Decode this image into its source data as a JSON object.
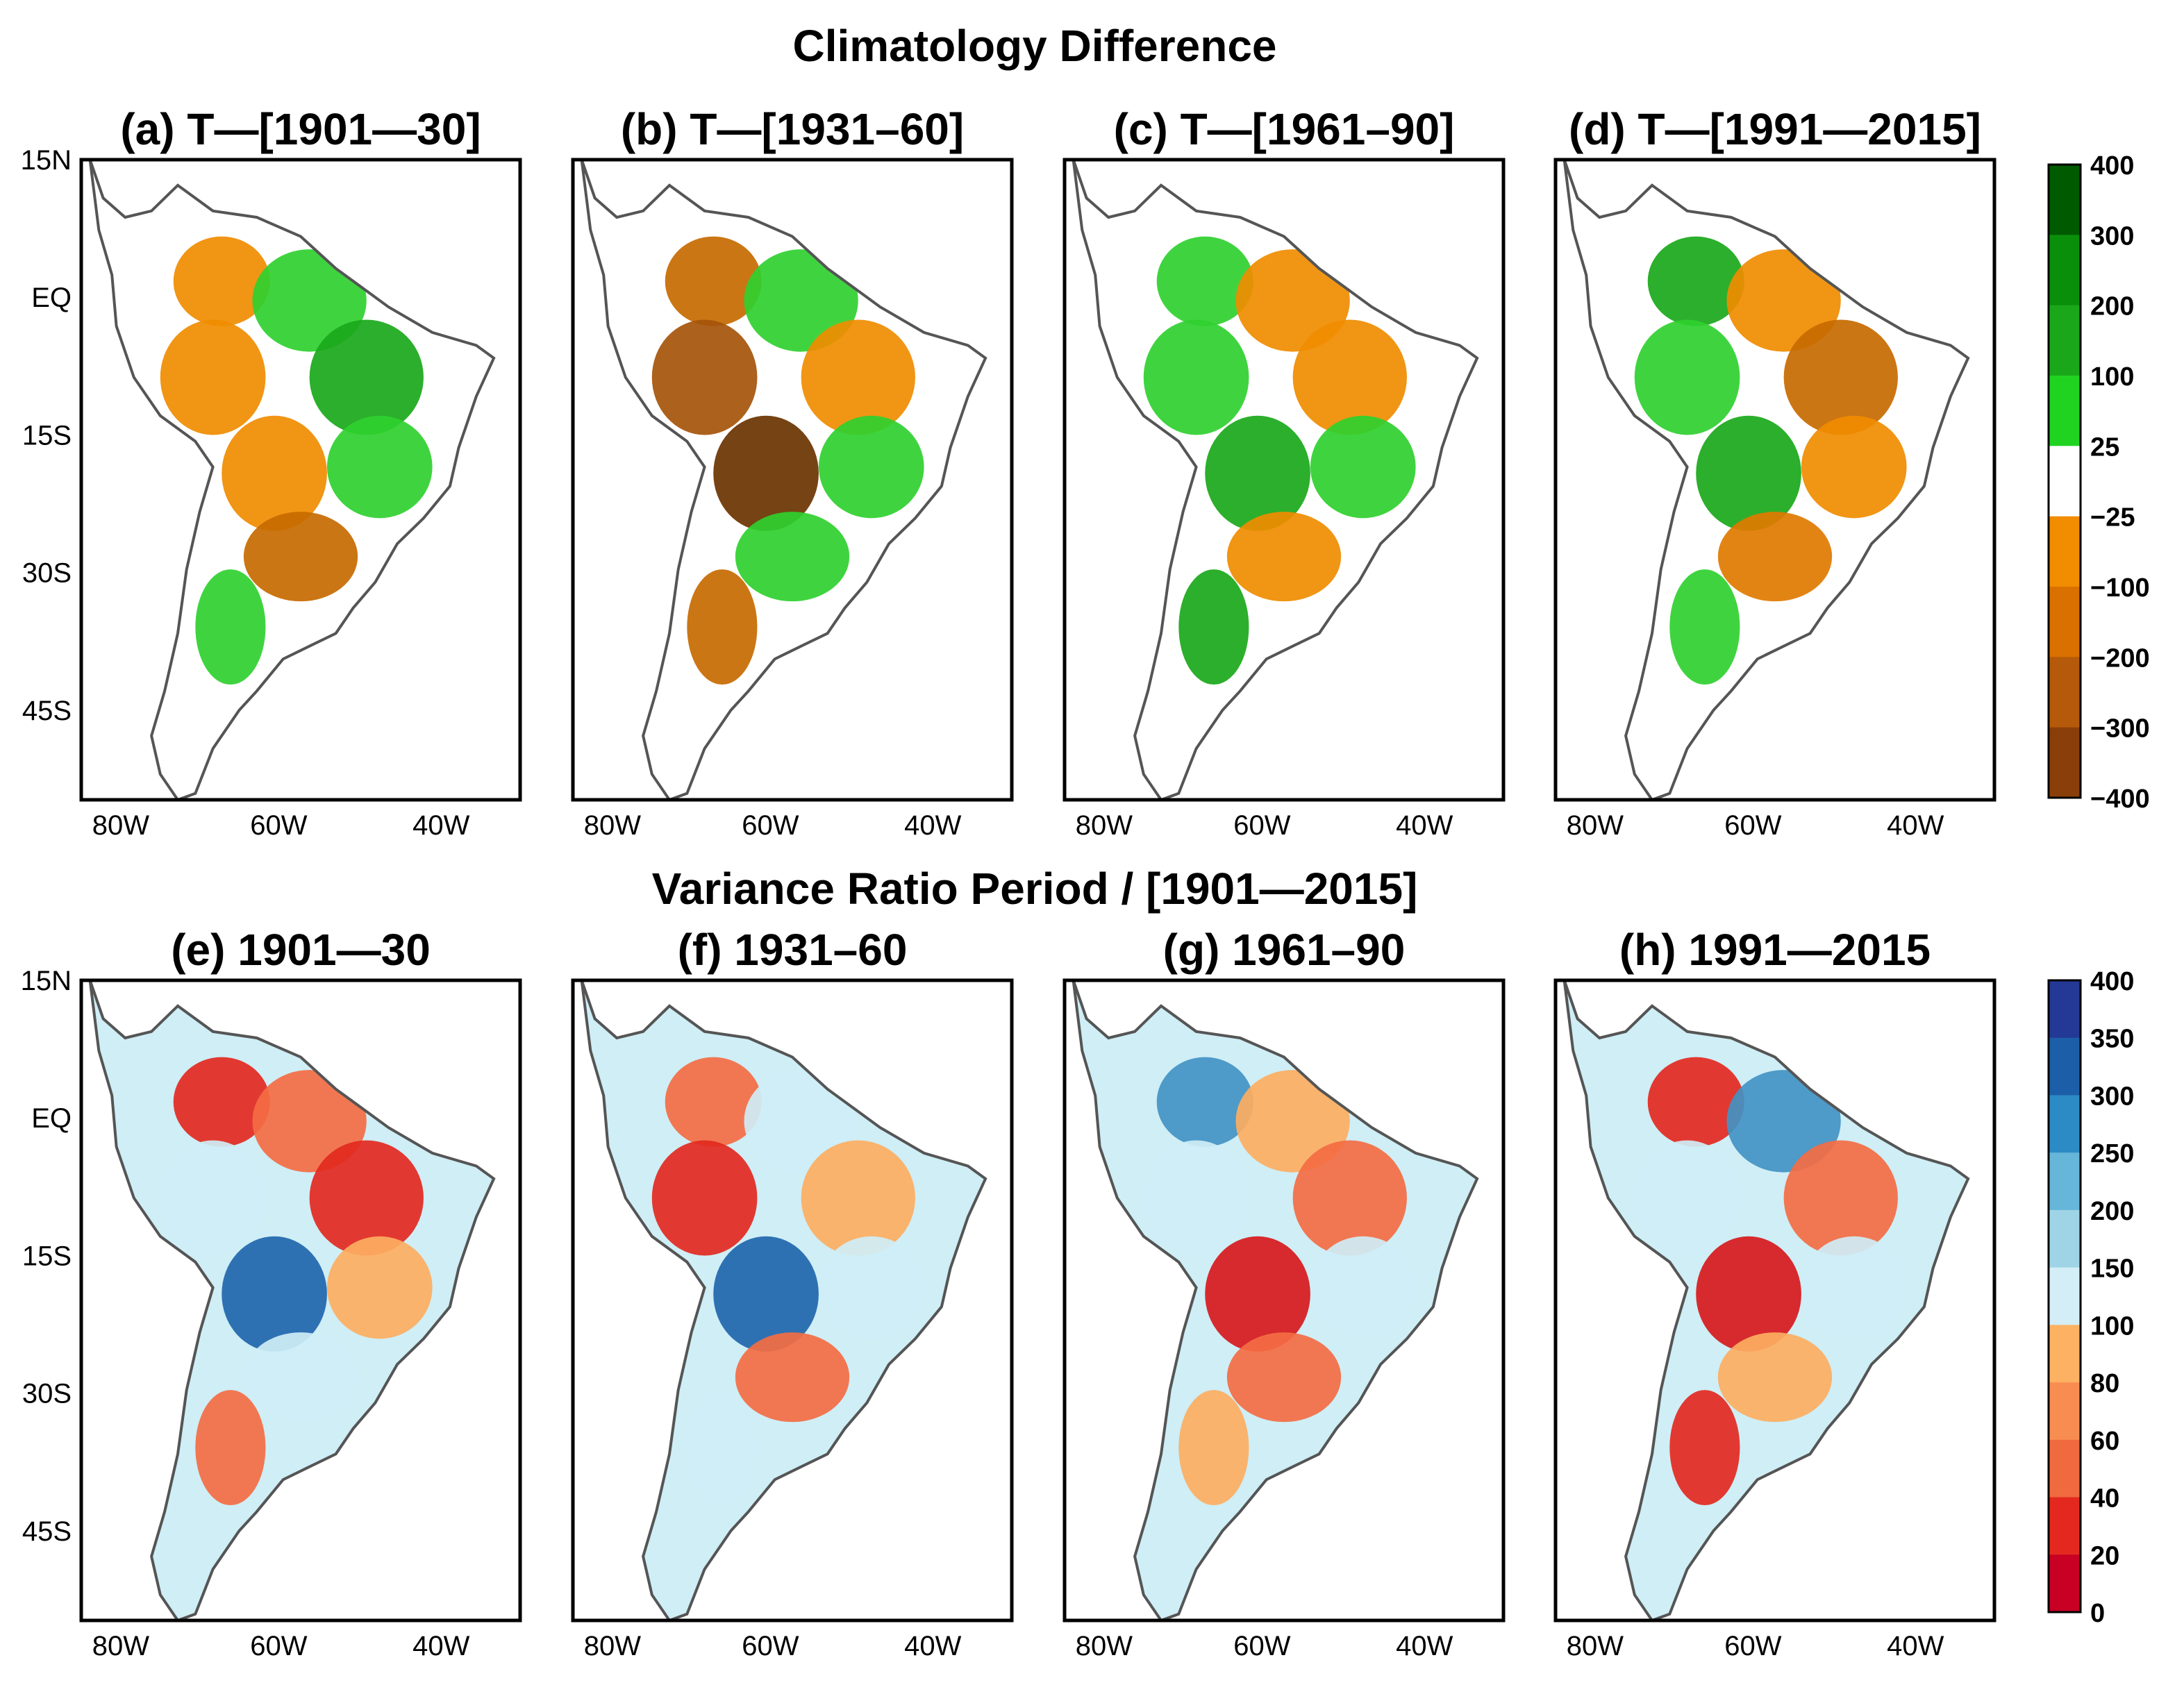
{
  "figure": {
    "top_section_title": "Climatology Difference",
    "bottom_section_title": "Variance Ratio Period / [1901—2015]"
  },
  "panels_top": [
    {
      "title": "(a) T—[1901—30]",
      "shading": [
        "#f08c00",
        "#2fd02f",
        "#f08c00",
        "#1aa81a",
        "#f08c00",
        "#2fd02f",
        "#c76a00",
        "#2fd02f"
      ]
    },
    {
      "title": "(b) T—[1931–60]",
      "shading": [
        "#c76a00",
        "#2fd02f",
        "#a5540a",
        "#f08c00",
        "#6a3300",
        "#2fd02f",
        "#2fd02f",
        "#c76a00"
      ]
    },
    {
      "title": "(c) T—[1961–90]",
      "shading": [
        "#2fd02f",
        "#f08c00",
        "#2fd02f",
        "#f08c00",
        "#1aa81a",
        "#2fd02f",
        "#f08c00",
        "#1aa81a"
      ]
    },
    {
      "title": "(d) T—[1991—2015]",
      "shading": [
        "#1aa81a",
        "#f08c00",
        "#2fd02f",
        "#c76a00",
        "#1aa81a",
        "#f08c00",
        "#e07a00",
        "#2fd02f"
      ]
    }
  ],
  "panels_bottom": [
    {
      "title": "(e) 1901—30",
      "shading": [
        "#e3291f",
        "#f46d43",
        "#cfeef6",
        "#e3291f",
        "#2166ac",
        "#fdae61",
        "#cfeef6",
        "#f46d43"
      ]
    },
    {
      "title": "(f) 1931–60",
      "shading": [
        "#f46d43",
        "#cfeef6",
        "#e3291f",
        "#fdae61",
        "#2166ac",
        "#cfeef6",
        "#f46d43",
        "#cfeef6"
      ]
    },
    {
      "title": "(g) 1961–90",
      "shading": [
        "#4393c3",
        "#fdae61",
        "#cfeef6",
        "#f46d43",
        "#d7191c",
        "#cfeef6",
        "#f46d43",
        "#fdae61"
      ]
    },
    {
      "title": "(h) 1991—2015",
      "shading": [
        "#e3291f",
        "#4393c3",
        "#cfeef6",
        "#f46d43",
        "#d7191c",
        "#cfeef6",
        "#fdae61",
        "#e3291f"
      ]
    }
  ],
  "axes": {
    "lat_ticks": [
      "15N",
      "EQ",
      "15S",
      "30S",
      "45S"
    ],
    "lon_ticks": [
      "80W",
      "60W",
      "40W"
    ]
  },
  "colorbar_top": {
    "labels": [
      "400",
      "300",
      "200",
      "100",
      "25",
      "−25",
      "−100",
      "−200",
      "−300",
      "−400"
    ],
    "colors": [
      "#005a00",
      "#0a8f0a",
      "#1aa81a",
      "#21d321",
      "#ffffff",
      "#f28c00",
      "#d97000",
      "#b45a0a",
      "#8a3f0a"
    ]
  },
  "colorbar_bottom": {
    "labels": [
      "400",
      "350",
      "300",
      "250",
      "200",
      "150",
      "100",
      "80",
      "60",
      "40",
      "20",
      "0"
    ],
    "colors": [
      "#243996",
      "#1c5ea8",
      "#2c8bc4",
      "#66b6d9",
      "#9fd4e6",
      "#d3eef6",
      "#fdb163",
      "#f88d52",
      "#f06a3f",
      "#e3291f",
      "#c70024"
    ]
  }
}
